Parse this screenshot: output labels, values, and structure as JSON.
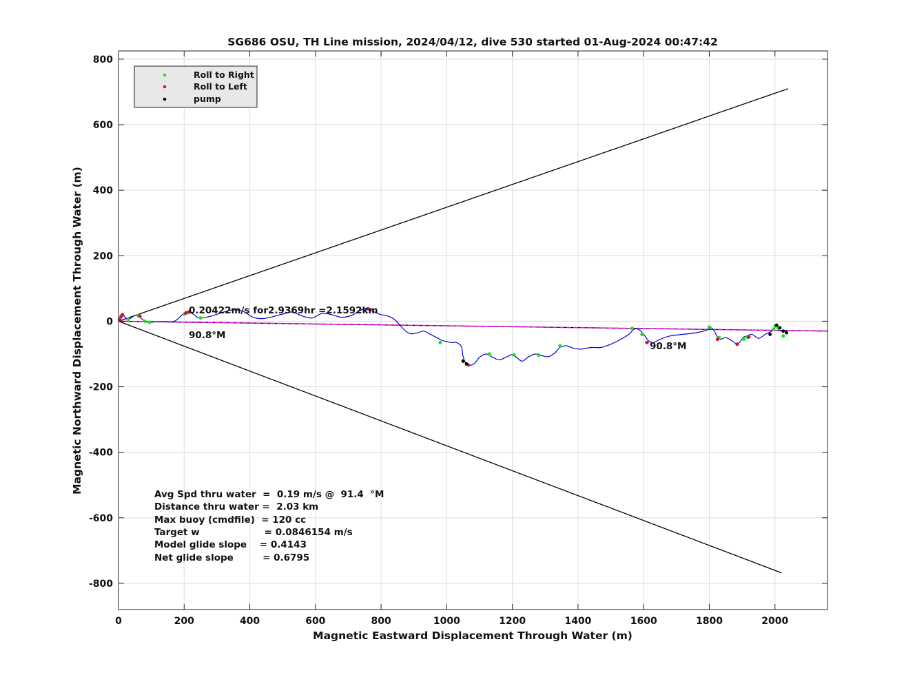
{
  "chart_data": {
    "type": "line",
    "title": "SG686 OSU, TH Line mission, 2024/04/12, dive 530 started 01-Aug-2024 00:47:42",
    "xlabel": "Magnetic Eastward Displacement Through Water (m)",
    "ylabel": "Magnetic Northward Displacement Through Water (m)",
    "xlim": [
      0,
      2160
    ],
    "ylim": [
      -880,
      825
    ],
    "xticks": [
      0,
      200,
      400,
      600,
      800,
      1000,
      1200,
      1400,
      1600,
      1800,
      2000
    ],
    "yticks": [
      800,
      600,
      400,
      200,
      0,
      -200,
      -400,
      -600,
      -800
    ],
    "grid": true,
    "legend": {
      "placement": "top-left",
      "items": [
        {
          "label": "Roll to Right",
          "color": "#22dd22"
        },
        {
          "label": "Roll to Left",
          "color": "#dd1133"
        },
        {
          "label": "pump",
          "color": "#000000"
        }
      ]
    },
    "colors": {
      "track": "#0000cc",
      "heading": "#ff00ff",
      "cone": "#000000",
      "right_roll": "#22dd22",
      "left_roll": "#cc1144",
      "pump": "#000000"
    },
    "series": [
      {
        "role": "track",
        "x": [
          0,
          5,
          10,
          15,
          22,
          30,
          40,
          52,
          62,
          70,
          78,
          85,
          92,
          100,
          130,
          170,
          200,
          215,
          230,
          245,
          265,
          290,
          320,
          350,
          380,
          410,
          440,
          470,
          500,
          530,
          560,
          590,
          620,
          650,
          680,
          710,
          735,
          755,
          765,
          780,
          800,
          815,
          830,
          845,
          860,
          875,
          890,
          910,
          930,
          950,
          970,
          985,
          1000,
          1015,
          1030,
          1045,
          1050,
          1060,
          1070,
          1085,
          1100,
          1120,
          1140,
          1160,
          1180,
          1200,
          1215,
          1230,
          1250,
          1270,
          1290,
          1310,
          1330,
          1345,
          1365,
          1385,
          1410,
          1440,
          1470,
          1500,
          1530,
          1555,
          1570,
          1585,
          1600,
          1615,
          1630,
          1650,
          1680,
          1720,
          1760,
          1790,
          1805,
          1815,
          1825,
          1835,
          1850,
          1870,
          1885,
          1895,
          1905,
          1915,
          1930,
          1950,
          1970,
          1990,
          2000,
          2005,
          2010,
          2020,
          2030,
          2035
        ],
        "y": [
          0,
          10,
          22,
          18,
          10,
          5,
          12,
          18,
          16,
          8,
          2,
          -1,
          -3,
          -3,
          -1,
          0,
          25,
          28,
          20,
          10,
          12,
          18,
          28,
          35,
          30,
          12,
          8,
          14,
          22,
          28,
          16,
          10,
          24,
          20,
          12,
          18,
          32,
          40,
          35,
          28,
          20,
          18,
          12,
          2,
          -15,
          -30,
          -38,
          -36,
          -30,
          -40,
          -50,
          -58,
          -62,
          -65,
          -65,
          -78,
          -108,
          -130,
          -135,
          -128,
          -110,
          -100,
          -110,
          -118,
          -110,
          -102,
          -112,
          -122,
          -108,
          -100,
          -105,
          -108,
          -96,
          -80,
          -75,
          -82,
          -85,
          -80,
          -80,
          -70,
          -55,
          -40,
          -25,
          -25,
          -40,
          -60,
          -65,
          -55,
          -45,
          -40,
          -35,
          -28,
          -20,
          -30,
          -48,
          -55,
          -50,
          -60,
          -70,
          -60,
          -48,
          -45,
          -40,
          -52,
          -40,
          -30,
          -20,
          -8,
          -25,
          -30,
          -28,
          -32
        ]
      },
      {
        "role": "right-roll-markers",
        "x": [
          5,
          30,
          60,
          80,
          95,
          200,
          210,
          250,
          980,
          1050,
          1130,
          1205,
          1280,
          1345,
          1565,
          1595,
          1800,
          1830,
          1905,
          1915,
          1995,
          2000,
          2010,
          2025
        ],
        "y": [
          10,
          6,
          18,
          0,
          -3,
          22,
          28,
          10,
          -65,
          -120,
          -100,
          -103,
          -103,
          -75,
          -22,
          -40,
          -18,
          -50,
          -55,
          -48,
          -25,
          -15,
          -20,
          -45
        ]
      },
      {
        "role": "left-roll-markers",
        "x": [
          3,
          8,
          12,
          65,
          205,
          215,
          760,
          1065,
          1610,
          1825,
          1885,
          1920
        ],
        "y": [
          5,
          15,
          20,
          16,
          25,
          28,
          38,
          -133,
          -65,
          -55,
          -70,
          -48
        ]
      },
      {
        "role": "pump-markers",
        "x": [
          1050,
          1060,
          1985,
          2005,
          2015,
          2025,
          2035
        ],
        "y": [
          -122,
          -130,
          -40,
          -12,
          -20,
          -30,
          -35
        ]
      },
      {
        "role": "heading-line",
        "x": [
          0,
          2160
        ],
        "y": [
          0,
          -30
        ]
      },
      {
        "role": "cone-boundaries",
        "lines": [
          {
            "x": [
              0,
              2040
            ],
            "y": [
              0,
              710
            ]
          },
          {
            "x": [
              0,
              2020
            ],
            "y": [
              0,
              -768
            ]
          },
          {
            "x": [
              0,
              2160
            ],
            "y": [
              0,
              -30
            ]
          }
        ]
      }
    ],
    "annotations": {
      "speed_text": "0.20422m/s for2.9369hr =2.1592km",
      "heading_start": "90.8°M",
      "heading_end": "90.8°M"
    },
    "stats": [
      "Avg Spd thru water  =  0.19 m/s @  91.4  °M",
      "Distance thru water =  2.03 km",
      "Max buoy (cmdfile)  = 120 cc",
      "Target w                    = 0.0846154 m/s",
      "Model glide slope    = 0.4143",
      "Net glide slope         = 0.6795"
    ]
  }
}
